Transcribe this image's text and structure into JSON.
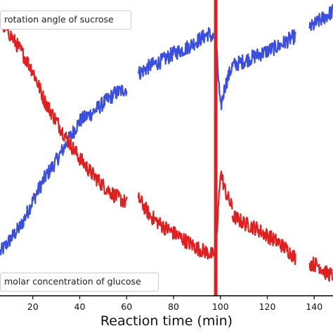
{
  "chart_data": {
    "type": "line",
    "xlabel": "Reaction time (min)",
    "ylabel": "",
    "xlim": [
      6,
      148
    ],
    "ylim": [
      0,
      1
    ],
    "x_ticks": [
      20,
      40,
      60,
      80,
      100,
      120,
      140
    ],
    "legend": {
      "top_label": "rotation angle of sucrose",
      "bottom_label": "molar concentration of glucose"
    },
    "vertical_marker_x": 98,
    "colors": {
      "rotation": "#3a4ee0",
      "glucose": "#e02020",
      "marker": "#e02020",
      "axis": "#000000"
    },
    "series": [
      {
        "name": "rotation angle of sucrose",
        "color": "#3a4ee0",
        "segments": [
          {
            "x": [
              6,
              10,
              15,
              20,
              25,
              30,
              35,
              40,
              45,
              50,
              55,
              60
            ],
            "y": [
              0.07,
              0.12,
              0.18,
              0.28,
              0.37,
              0.44,
              0.52,
              0.6,
              0.63,
              0.67,
              0.71,
              0.73
            ]
          },
          {
            "x": [
              65,
              70,
              75,
              80,
              85,
              90,
              95,
              97
            ],
            "y": [
              0.79,
              0.82,
              0.84,
              0.87,
              0.89,
              0.92,
              0.95,
              0.93
            ]
          },
          {
            "x": [
              98,
              100,
              102,
              105
            ],
            "y": [
              0.93,
              0.65,
              0.74,
              0.82
            ]
          },
          {
            "x": [
              105,
              110,
              115,
              120,
              125,
              130,
              132
            ],
            "y": [
              0.82,
              0.84,
              0.86,
              0.88,
              0.9,
              0.93,
              0.94
            ]
          },
          {
            "x": [
              138,
              142,
              145,
              148
            ],
            "y": [
              0.97,
              1.0,
              1.02,
              1.04
            ]
          }
        ]
      },
      {
        "name": "molar concentration of glucose",
        "color": "#e02020",
        "segments": [
          {
            "x": [
              6,
              10,
              15,
              20,
              25,
              30,
              35,
              40,
              45,
              50,
              55,
              60
            ],
            "y": [
              1.0,
              0.95,
              0.88,
              0.8,
              0.68,
              0.6,
              0.52,
              0.45,
              0.39,
              0.34,
              0.3,
              0.27
            ]
          },
          {
            "x": [
              65,
              70,
              75,
              80,
              85,
              90,
              95,
              97
            ],
            "y": [
              0.29,
              0.22,
              0.18,
              0.15,
              0.12,
              0.09,
              0.07,
              0.06
            ]
          },
          {
            "x": [
              98,
              100,
              102,
              105
            ],
            "y": [
              0.06,
              0.4,
              0.32,
              0.25
            ]
          },
          {
            "x": [
              105,
              110,
              115,
              120,
              125,
              130,
              132
            ],
            "y": [
              0.22,
              0.19,
              0.17,
              0.14,
              0.11,
              0.07,
              0.05
            ]
          },
          {
            "x": [
              138,
              142,
              145,
              148
            ],
            "y": [
              0.03,
              0.02,
              -0.01,
              -0.02
            ]
          }
        ]
      }
    ]
  }
}
